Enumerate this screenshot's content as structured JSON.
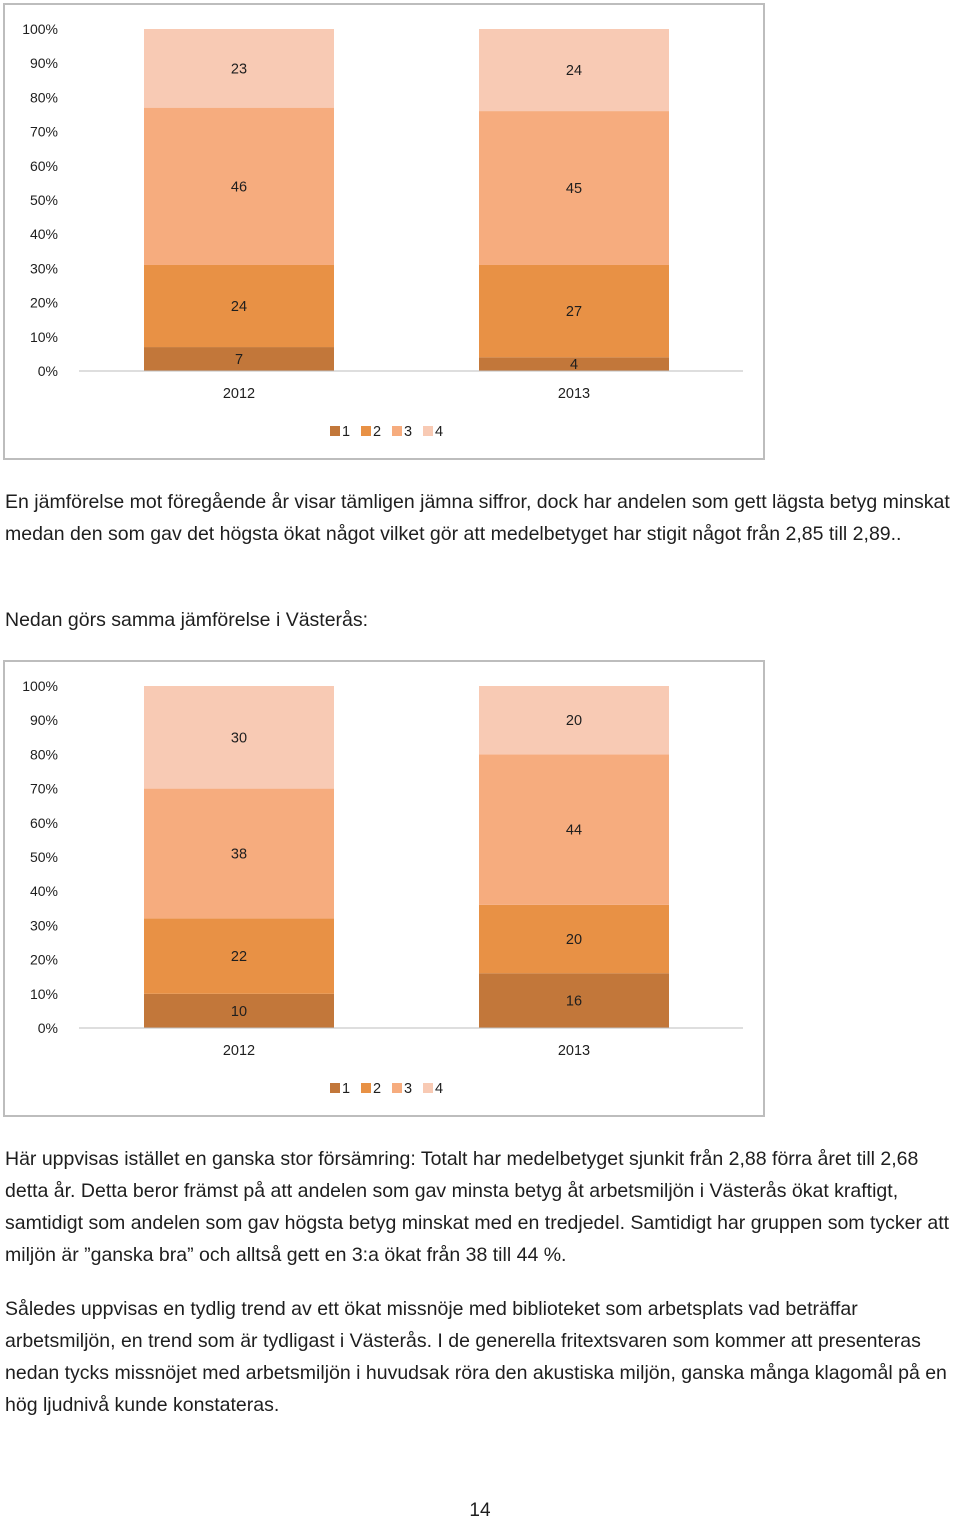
{
  "colors": {
    "level_1": "#c2773a",
    "level_2": "#e89145",
    "level_3": "#f6ac7e",
    "level_4": "#f8cab4",
    "axis": "#bdbdbd",
    "text": "#1e1e1e"
  },
  "chart_data": [
    {
      "type": "bar",
      "stacked": "percent",
      "categories": [
        "2012",
        "2013"
      ],
      "series": [
        {
          "name": "1",
          "values": [
            7,
            4
          ]
        },
        {
          "name": "2",
          "values": [
            24,
            27
          ]
        },
        {
          "name": "3",
          "values": [
            46,
            45
          ]
        },
        {
          "name": "4",
          "values": [
            23,
            24
          ]
        }
      ],
      "y_ticks": [
        "0%",
        "10%",
        "20%",
        "30%",
        "40%",
        "50%",
        "60%",
        "70%",
        "80%",
        "90%",
        "100%"
      ],
      "ylim": [
        0,
        100
      ],
      "legend": {
        "placement": "bottom",
        "labels": [
          "1",
          "2",
          "3",
          "4"
        ]
      },
      "grid": false
    },
    {
      "type": "bar",
      "stacked": "percent",
      "categories": [
        "2012",
        "2013"
      ],
      "series": [
        {
          "name": "1",
          "values": [
            10,
            16
          ]
        },
        {
          "name": "2",
          "values": [
            22,
            20
          ]
        },
        {
          "name": "3",
          "values": [
            38,
            44
          ]
        },
        {
          "name": "4",
          "values": [
            30,
            20
          ]
        }
      ],
      "y_ticks": [
        "0%",
        "10%",
        "20%",
        "30%",
        "40%",
        "50%",
        "60%",
        "70%",
        "80%",
        "90%",
        "100%"
      ],
      "ylim": [
        0,
        100
      ],
      "legend": {
        "placement": "bottom",
        "labels": [
          "1",
          "2",
          "3",
          "4"
        ]
      },
      "grid": false
    }
  ],
  "text": {
    "paragraph_1": "En jämförelse mot föregående år visar tämligen jämna siffror, dock har andelen som gett lägsta betyg minskat medan den som gav det högsta ökat något vilket gör att medelbetyget har stigit något från 2,85 till 2,89..",
    "paragraph_2": "Nedan görs samma jämförelse i Västerås:",
    "paragraph_3": "Här uppvisas istället en ganska stor försämring: Totalt har medelbetyget sjunkit från 2,88 förra året till 2,68 detta år. Detta beror främst på att andelen som gav minsta betyg åt arbetsmiljön i Västerås ökat kraftigt, samtidigt som andelen som gav högsta betyg minskat med en tredjedel. Samtidigt har gruppen som tycker att miljön är ”ganska bra” och alltså gett en 3:a ökat från 38 till 44 %.",
    "paragraph_4": "Således uppvisas en tydlig trend av ett ökat missnöje med biblioteket som arbetsplats vad beträffar arbetsmiljön, en trend som är tydligast i Västerås. I de generella fritextsvaren som kommer att presenteras nedan tycks missnöjet med arbetsmiljön i huvudsak röra den akustiska miljön, ganska många klagomål på en hög ljudnivå kunde konstateras.",
    "page_number": "14"
  }
}
